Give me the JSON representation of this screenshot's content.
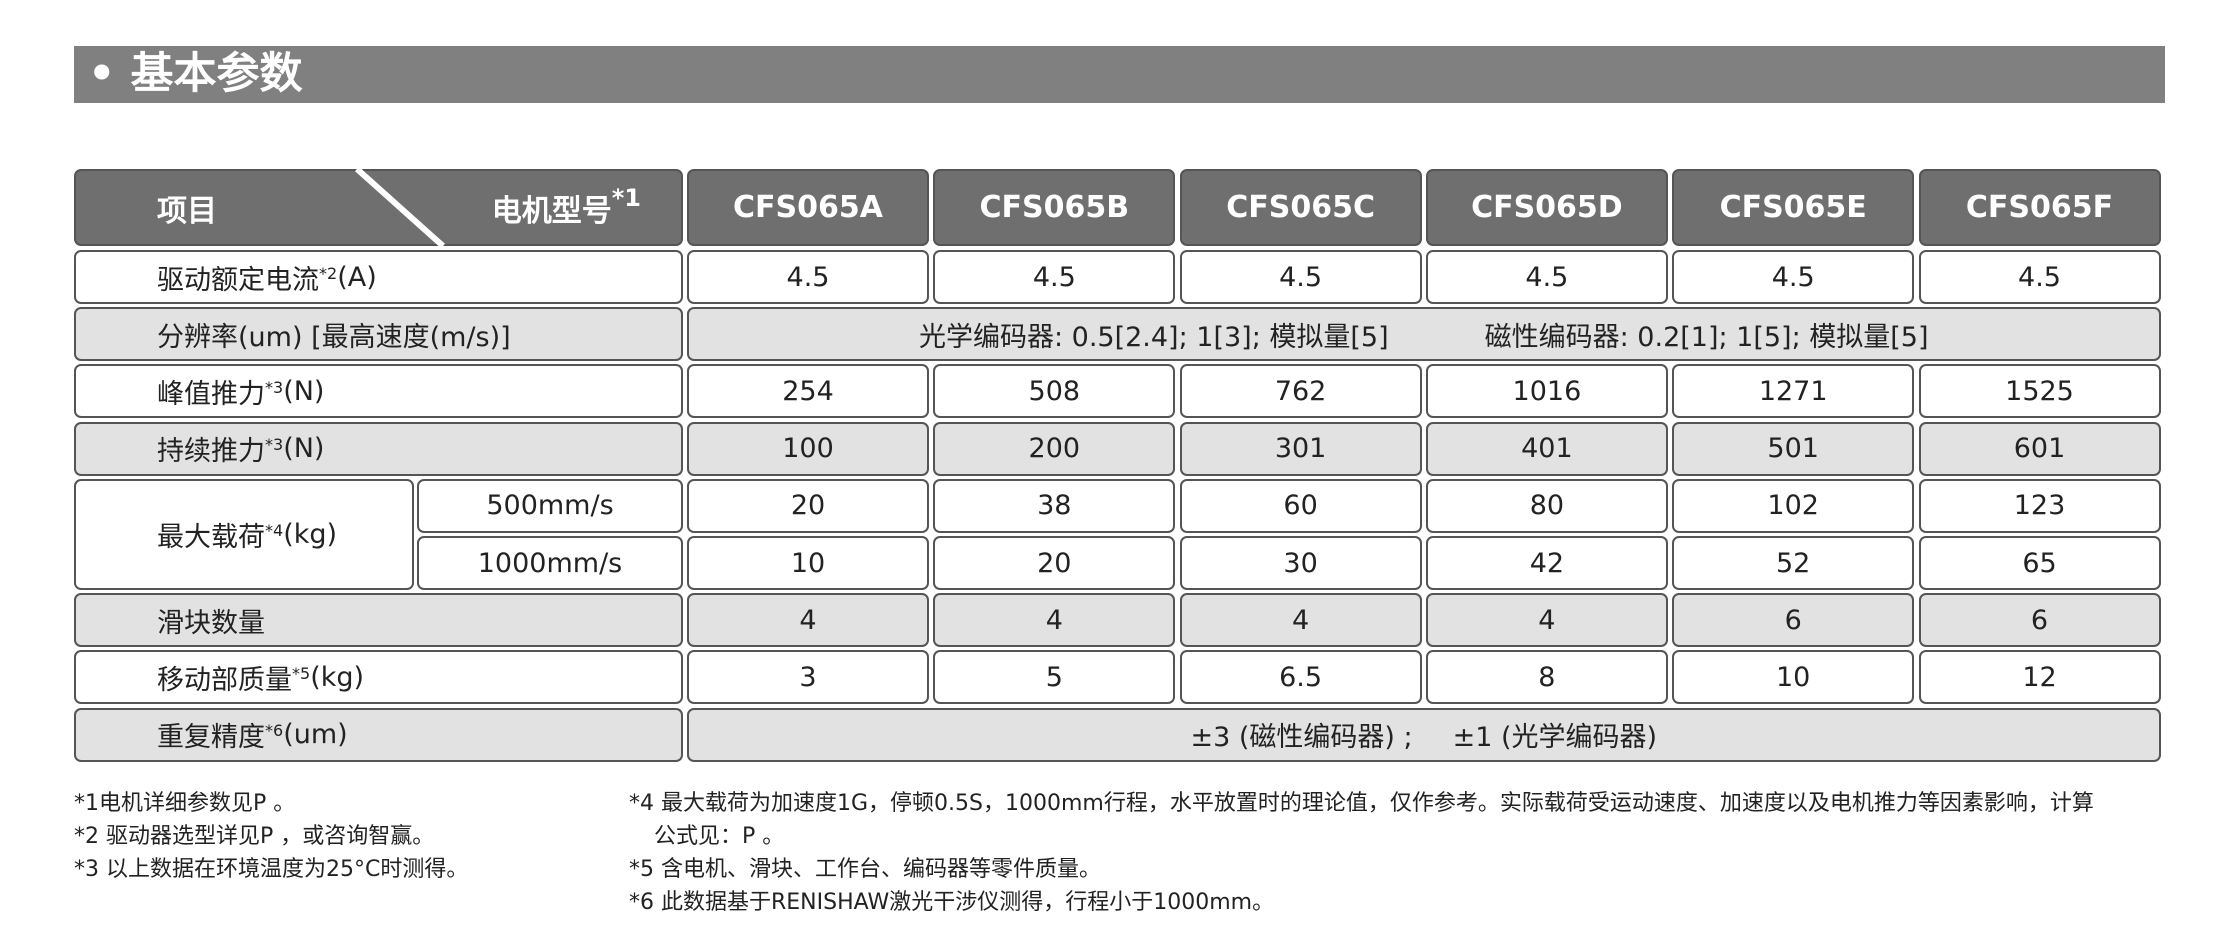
{
  "header": {
    "title": "基本参数"
  },
  "table": {
    "corner": {
      "left": "项目",
      "right": "电机型号",
      "right_sup": "*1"
    },
    "models": [
      "CFS065A",
      "CFS065B",
      "CFS065C",
      "CFS065D",
      "CFS065E",
      "CFS065F"
    ],
    "rows": [
      {
        "label": {
          "text": "驱动额定电流",
          "sup": "*2",
          "unit": "(A)"
        },
        "values": [
          4.5,
          4.5,
          4.5,
          4.5,
          4.5,
          4.5
        ]
      },
      {
        "label": {
          "text": "分辨率(um) [最高速度(m/s)]"
        },
        "span": [
          "光学编码器: 0.5[2.4]; 1[3]; 模拟量[5]",
          "磁性编码器: 0.2[1]; 1[5]; 模拟量[5]"
        ]
      },
      {
        "label": {
          "text": "峰值推力",
          "sup": "*3",
          "unit": "(N)"
        },
        "values": [
          254,
          508,
          762,
          1016,
          1271,
          1525
        ]
      },
      {
        "label": {
          "text": "持续推力",
          "sup": "*3",
          "unit": "(N)"
        },
        "values": [
          100,
          200,
          301,
          401,
          501,
          601
        ]
      },
      {
        "label": {
          "text": "最大载荷",
          "sup": "*4",
          "unit": "(kg)"
        },
        "sub": [
          {
            "speed": "500mm/s",
            "values": [
              20,
              38,
              60,
              80,
              102,
              123
            ]
          },
          {
            "speed": "1000mm/s",
            "values": [
              10,
              20,
              30,
              42,
              52,
              65
            ]
          }
        ]
      },
      {
        "label": {
          "text": "滑块数量"
        },
        "values": [
          4,
          4,
          4,
          4,
          6,
          6
        ]
      },
      {
        "label": {
          "text": "移动部质量",
          "sup": "*5",
          "unit": "(kg)"
        },
        "values": [
          3,
          5,
          6.5,
          8,
          10,
          12
        ]
      },
      {
        "label": {
          "text": "重复精度",
          "sup": "*6",
          "unit": "(um)"
        },
        "span": [
          "±3 (磁性编码器) ;",
          "±1 (光学编码器)"
        ]
      }
    ]
  },
  "footnotes": {
    "left": [
      "*1电机详细参数见P 。",
      "*2 驱动器选型详见P ，或咨询智赢。",
      "*3 以上数据在环境温度为25°C时测得。"
    ],
    "right": [
      [
        "*4 最大载荷为加速度1G，停顿0.5S，1000mm行程，水平放置时的理论值，仅作参考。实际载荷受运动速度、加速度以及电机推力等因素影响，计算",
        "公式见：P 。"
      ],
      [
        "*5 含电机、滑块、工作台、编码器等零件质量。"
      ],
      [
        "*6 此数据基于RENISHAW激光干涉仪测得，行程小于1000mm。"
      ]
    ]
  }
}
